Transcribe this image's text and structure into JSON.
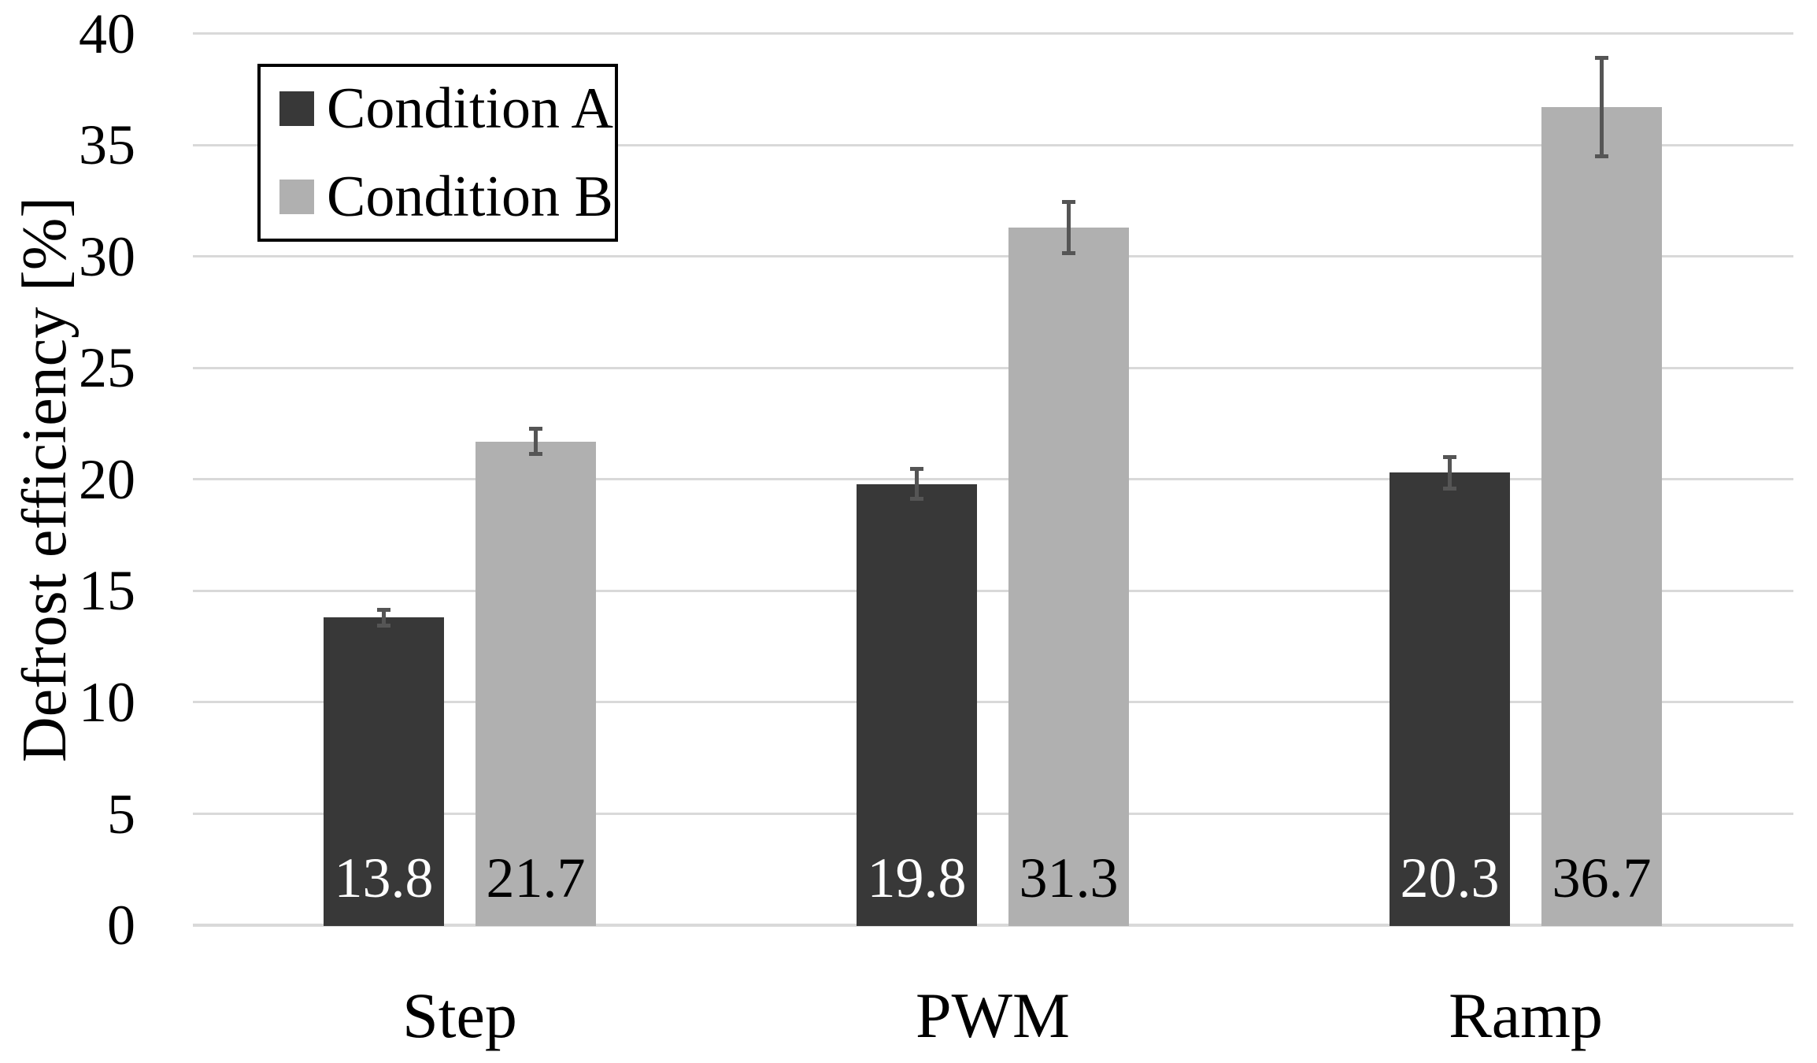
{
  "chart_data": {
    "type": "bar",
    "title": "",
    "xlabel": "",
    "ylabel": "Defrost efficiency [%]",
    "categories": [
      "Step",
      "PWM",
      "Ramp"
    ],
    "series": [
      {
        "name": "Condition A",
        "color": "#383838",
        "label_text_color": "#ffffff",
        "values": [
          13.8,
          19.8,
          20.3
        ],
        "errors": [
          0.45,
          0.75,
          0.8
        ]
      },
      {
        "name": "Condition B",
        "color": "#b0b0b0",
        "label_text_color": "#000000",
        "values": [
          21.7,
          31.3,
          36.7
        ],
        "errors": [
          0.65,
          1.25,
          2.3
        ]
      }
    ],
    "data_labels": [
      [
        "13.8",
        "19.8",
        "20.3"
      ],
      [
        "21.7",
        "31.3",
        "36.7"
      ]
    ],
    "ylim": [
      0,
      40
    ],
    "yticks": [
      0,
      5,
      10,
      15,
      20,
      25,
      30,
      35,
      40
    ],
    "grid": true,
    "legend_position": "top-left",
    "colors": {
      "gridline": "#d9d9d9",
      "error_bar": "#555555",
      "background": "#ffffff",
      "text": "#000000"
    }
  },
  "legend": {
    "items": [
      "Condition A",
      "Condition B"
    ]
  }
}
